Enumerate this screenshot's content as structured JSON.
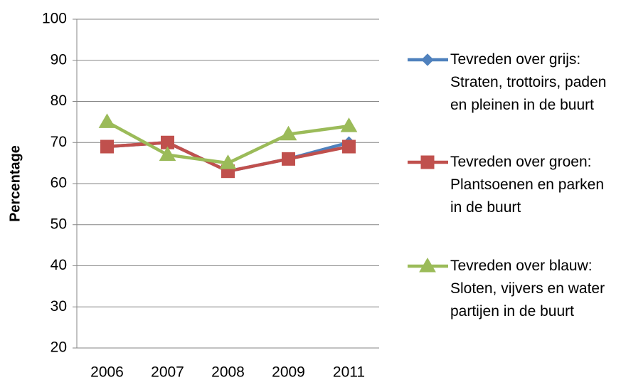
{
  "chart_data": {
    "type": "line",
    "y_label": "Percentage",
    "categories": [
      "2006",
      "2007",
      "2008",
      "2009",
      "2011"
    ],
    "series": [
      {
        "name": "Tevreden over grijs: Straten, trottoirs, paden en pleinen in de buurt",
        "color": "#4f81bd",
        "marker": "diamond",
        "values": [
          69,
          70,
          63,
          66,
          70
        ]
      },
      {
        "name": "Tevreden over groen: Plantsoenen en parken in de buurt",
        "color": "#c0504d",
        "marker": "square",
        "values": [
          69,
          70,
          63,
          66,
          69
        ]
      },
      {
        "name": "Tevreden over blauw: Sloten, vijvers en water partijen in de buurt",
        "color": "#9bbb59",
        "marker": "triangle",
        "values": [
          75,
          67,
          65,
          72,
          74
        ]
      }
    ],
    "ylim": [
      20,
      100
    ],
    "yticks": [
      20,
      30,
      40,
      50,
      60,
      70,
      80,
      90,
      100
    ],
    "grid": true,
    "legend": "right"
  }
}
